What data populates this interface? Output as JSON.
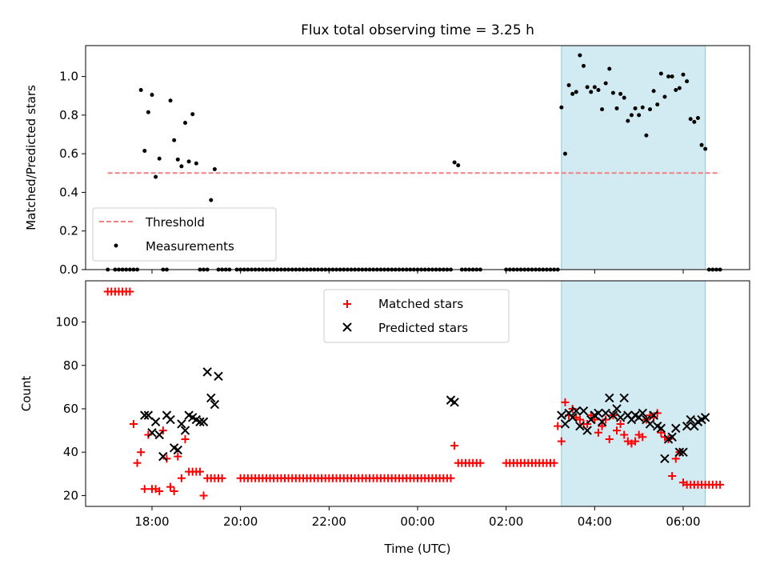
{
  "title": "Flux total observing time = 3.25 h",
  "colors": {
    "threshold": "#f08080",
    "measurements": "#000000",
    "matched": "#ff0000",
    "predicted": "#000000",
    "highlight": "#add8e6"
  },
  "chart_data": [
    {
      "type": "scatter",
      "ylabel": "Matched/Predicted stars",
      "ylim": [
        0,
        1.16
      ],
      "yticks": [
        0.0,
        0.2,
        0.4,
        0.6,
        0.8,
        1.0
      ],
      "ytick_labels": [
        "0.0",
        "0.2",
        "0.4",
        "0.6",
        "0.8",
        "1.0"
      ],
      "x_range": [
        "16:30",
        "07:30"
      ],
      "grid": false,
      "highlight_span": [
        "03:15",
        "06:30"
      ],
      "legend_position": "lower-left",
      "threshold": {
        "name": "Threshold",
        "y": 0.5,
        "x_range": [
          "17:00",
          "06:50"
        ],
        "style": "dashed"
      },
      "series": [
        {
          "name": "Measurements",
          "marker": "dot",
          "x": [
            "17:00",
            "17:10",
            "17:15",
            "17:20",
            "17:25",
            "17:30",
            "17:35",
            "17:40",
            "17:45",
            "17:50",
            "17:55",
            "18:00",
            "18:05",
            "18:10",
            "18:15",
            "18:20",
            "18:25",
            "18:30",
            "18:35",
            "18:40",
            "18:45",
            "18:50",
            "18:55",
            "19:00",
            "19:05",
            "19:10",
            "19:15",
            "19:20",
            "19:25",
            "19:30",
            "19:35",
            "19:40",
            "19:45",
            "19:55",
            "20:00",
            "20:05",
            "20:10",
            "20:15",
            "20:20",
            "20:25",
            "20:30",
            "20:35",
            "20:40",
            "20:45",
            "20:50",
            "20:55",
            "21:00",
            "21:05",
            "21:10",
            "21:15",
            "21:20",
            "21:25",
            "21:30",
            "21:35",
            "21:40",
            "21:45",
            "21:50",
            "21:55",
            "22:00",
            "22:05",
            "22:10",
            "22:15",
            "22:20",
            "22:25",
            "22:30",
            "22:35",
            "22:40",
            "22:45",
            "22:50",
            "22:55",
            "23:00",
            "23:05",
            "23:10",
            "23:15",
            "23:20",
            "23:25",
            "23:30",
            "23:35",
            "23:40",
            "23:45",
            "23:50",
            "23:55",
            "00:00",
            "00:05",
            "00:10",
            "00:15",
            "00:20",
            "00:25",
            "00:30",
            "00:35",
            "00:40",
            "00:45",
            "00:50",
            "00:55",
            "01:00",
            "01:05",
            "01:10",
            "01:15",
            "01:20",
            "01:25",
            "02:00",
            "02:05",
            "02:10",
            "02:15",
            "02:20",
            "02:25",
            "02:30",
            "02:35",
            "02:40",
            "02:45",
            "02:50",
            "02:55",
            "03:00",
            "03:05",
            "03:10",
            "03:15",
            "03:20",
            "03:25",
            "03:30",
            "03:35",
            "03:40",
            "03:45",
            "03:50",
            "03:55",
            "04:00",
            "04:05",
            "04:10",
            "04:15",
            "04:20",
            "04:25",
            "04:30",
            "04:35",
            "04:40",
            "04:45",
            "04:50",
            "04:55",
            "05:00",
            "05:05",
            "05:10",
            "05:15",
            "05:20",
            "05:25",
            "05:30",
            "05:35",
            "05:40",
            "05:45",
            "05:50",
            "05:55",
            "06:00",
            "06:05",
            "06:10",
            "06:15",
            "06:20",
            "06:25",
            "06:30",
            "06:35",
            "06:40",
            "06:45",
            "06:50"
          ],
          "y": [
            0,
            0,
            0,
            0,
            0,
            0,
            0,
            0,
            0.93,
            0.615,
            0.815,
            0.905,
            0.48,
            0.575,
            0,
            0,
            0.875,
            0.67,
            0.57,
            0.535,
            0.76,
            0.56,
            0.805,
            0.55,
            0,
            0,
            0,
            0.36,
            0.52,
            0,
            0,
            0,
            0,
            0,
            0,
            0,
            0,
            0,
            0,
            0,
            0,
            0,
            0,
            0,
            0,
            0,
            0,
            0,
            0,
            0,
            0,
            0,
            0,
            0,
            0,
            0,
            0,
            0,
            0,
            0,
            0,
            0,
            0,
            0,
            0,
            0,
            0,
            0,
            0,
            0,
            0,
            0,
            0,
            0,
            0,
            0,
            0,
            0,
            0,
            0,
            0,
            0,
            0,
            0,
            0,
            0,
            0,
            0,
            0,
            0,
            0,
            0,
            0.555,
            0.54,
            0,
            0,
            0,
            0,
            0,
            0,
            0,
            0,
            0,
            0,
            0,
            0,
            0,
            0,
            0,
            0,
            0,
            0,
            0,
            0,
            0,
            0.84,
            0.6,
            0.955,
            0.91,
            0.92,
            1.11,
            1.055,
            0.945,
            0.92,
            0.945,
            0.93,
            0.83,
            0.965,
            1.04,
            0.915,
            0.835,
            0.91,
            0.89,
            0.77,
            0.8,
            0.835,
            0.8,
            0.84,
            0.695,
            0.83,
            0.925,
            0.855,
            1.015,
            0.895,
            1.0,
            1.0,
            0.93,
            0.94,
            1.01,
            0.975,
            0.78,
            0.765,
            0.785,
            0.645,
            0.625,
            0,
            0,
            0,
            0
          ]
        }
      ]
    },
    {
      "type": "scatter",
      "xlabel": "Time (UTC)",
      "ylabel": "Count",
      "ylim": [
        15,
        119
      ],
      "yticks": [
        20,
        40,
        60,
        80,
        100
      ],
      "ytick_labels": [
        "20",
        "40",
        "60",
        "80",
        "100"
      ],
      "xticks": [
        "18:00",
        "20:00",
        "22:00",
        "00:00",
        "02:00",
        "04:00",
        "06:00"
      ],
      "xtick_labels": [
        "18:00",
        "20:00",
        "22:00",
        "00:00",
        "02:00",
        "04:00",
        "06:00"
      ],
      "x_range": [
        "16:30",
        "07:30"
      ],
      "grid": false,
      "highlight_span": [
        "03:15",
        "06:30"
      ],
      "legend_position": "upper-center",
      "series": [
        {
          "name": "Matched stars",
          "marker": "plus",
          "x": [
            "17:00",
            "17:05",
            "17:10",
            "17:15",
            "17:20",
            "17:25",
            "17:30",
            "17:35",
            "17:40",
            "17:45",
            "17:50",
            "17:55",
            "18:00",
            "18:05",
            "18:10",
            "18:15",
            "18:20",
            "18:25",
            "18:30",
            "18:35",
            "18:40",
            "18:45",
            "18:50",
            "18:55",
            "19:00",
            "19:05",
            "19:10",
            "19:15",
            "19:20",
            "19:25",
            "19:30",
            "19:35",
            "20:00",
            "20:05",
            "20:10",
            "20:15",
            "20:20",
            "20:25",
            "20:30",
            "20:35",
            "20:40",
            "20:45",
            "20:50",
            "20:55",
            "21:00",
            "21:05",
            "21:10",
            "21:15",
            "21:20",
            "21:25",
            "21:30",
            "21:35",
            "21:40",
            "21:45",
            "21:50",
            "21:55",
            "22:00",
            "22:05",
            "22:10",
            "22:15",
            "22:20",
            "22:25",
            "22:30",
            "22:35",
            "22:40",
            "22:45",
            "22:50",
            "22:55",
            "23:00",
            "23:05",
            "23:10",
            "23:15",
            "23:20",
            "23:25",
            "23:30",
            "23:35",
            "23:40",
            "23:45",
            "23:50",
            "23:55",
            "00:00",
            "00:05",
            "00:10",
            "00:15",
            "00:20",
            "00:25",
            "00:30",
            "00:35",
            "00:40",
            "00:45",
            "00:50",
            "00:55",
            "01:00",
            "01:05",
            "01:10",
            "01:15",
            "01:20",
            "01:25",
            "02:00",
            "02:05",
            "02:10",
            "02:15",
            "02:20",
            "02:25",
            "02:30",
            "02:35",
            "02:40",
            "02:45",
            "02:50",
            "02:55",
            "03:00",
            "03:05",
            "03:10",
            "03:15",
            "03:20",
            "03:25",
            "03:30",
            "03:35",
            "03:40",
            "03:45",
            "03:50",
            "03:55",
            "04:00",
            "04:05",
            "04:10",
            "04:15",
            "04:20",
            "04:25",
            "04:30",
            "04:35",
            "04:40",
            "04:45",
            "04:50",
            "04:55",
            "05:00",
            "05:05",
            "05:10",
            "05:15",
            "05:20",
            "05:25",
            "05:30",
            "05:35",
            "05:40",
            "05:45",
            "05:50",
            "05:55",
            "06:00",
            "06:05",
            "06:10",
            "06:15",
            "06:20",
            "06:25",
            "06:30",
            "06:35",
            "06:40",
            "06:45",
            "06:50"
          ],
          "y": [
            114,
            114,
            114,
            114,
            114,
            114,
            114,
            53,
            35,
            40,
            23,
            48,
            23,
            23,
            22,
            50,
            37,
            24,
            22,
            38,
            28,
            46,
            31,
            31,
            31,
            31,
            20,
            28,
            28,
            28,
            28,
            28,
            28,
            28,
            28,
            28,
            28,
            28,
            28,
            28,
            28,
            28,
            28,
            28,
            28,
            28,
            28,
            28,
            28,
            28,
            28,
            28,
            28,
            28,
            28,
            28,
            28,
            28,
            28,
            28,
            28,
            28,
            28,
            28,
            28,
            28,
            28,
            28,
            28,
            28,
            28,
            28,
            28,
            28,
            28,
            28,
            28,
            28,
            28,
            28,
            28,
            28,
            28,
            28,
            28,
            28,
            28,
            28,
            28,
            28,
            43,
            35,
            35,
            35,
            35,
            35,
            35,
            35,
            35,
            35,
            35,
            35,
            35,
            35,
            35,
            35,
            35,
            35,
            35,
            35,
            35,
            35,
            52,
            45,
            63,
            57,
            60,
            56,
            55,
            53,
            53,
            57,
            55,
            49,
            52,
            55,
            46,
            57,
            50,
            53,
            48,
            45,
            44,
            45,
            48,
            47,
            55,
            57,
            56,
            58,
            49,
            47,
            46,
            29,
            37,
            40,
            26,
            25,
            25,
            25,
            25,
            25,
            25,
            25,
            25,
            25,
            25
          ]
        },
        {
          "name": "Predicted stars",
          "marker": "x",
          "x": [
            "17:50",
            "17:55",
            "18:00",
            "18:05",
            "18:10",
            "18:15",
            "18:20",
            "18:25",
            "18:30",
            "18:35",
            "18:40",
            "18:45",
            "18:50",
            "18:55",
            "19:00",
            "19:05",
            "19:10",
            "19:15",
            "19:20",
            "19:25",
            "19:30",
            "00:45",
            "00:50",
            "03:15",
            "03:20",
            "03:25",
            "03:30",
            "03:35",
            "03:40",
            "03:45",
            "03:50",
            "03:55",
            "04:00",
            "04:05",
            "04:10",
            "04:15",
            "04:20",
            "04:25",
            "04:30",
            "04:35",
            "04:40",
            "04:45",
            "04:50",
            "04:55",
            "05:00",
            "05:05",
            "05:10",
            "05:15",
            "05:20",
            "05:25",
            "05:30",
            "05:35",
            "05:40",
            "05:45",
            "05:50",
            "05:55",
            "06:00",
            "06:05",
            "06:10",
            "06:15",
            "06:20",
            "06:25",
            "06:30"
          ],
          "y": [
            57,
            57,
            49,
            54,
            48,
            38,
            57,
            55,
            42,
            41,
            53,
            50,
            57,
            56,
            55,
            54,
            54,
            77,
            65,
            62,
            75,
            64,
            63,
            57,
            53,
            58,
            56,
            59,
            52,
            59,
            50,
            55,
            57,
            58,
            54,
            58,
            65,
            57,
            60,
            56,
            65,
            57,
            55,
            57,
            56,
            58,
            55,
            53,
            57,
            52,
            51,
            37,
            46,
            47,
            51,
            40,
            40,
            52,
            55,
            52,
            54,
            55,
            56
          ]
        }
      ]
    }
  ]
}
